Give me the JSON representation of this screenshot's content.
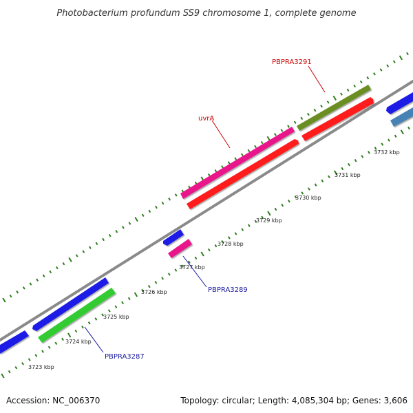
{
  "title": "Photobacterium profundum SS9 chromosome 1, complete genome",
  "footer": {
    "accession": "Accession: NC_006370",
    "summary": "Topology: circular; Length: 4,085,304 bp; Genes: 3,606"
  },
  "colors": {
    "backbone": "#8a8a8a",
    "tick": "#2e7d1e",
    "label_forward": "#cc0000",
    "label_reverse": "#1a1aa0",
    "leader_forward": "#cc0000",
    "leader_reverse": "#1a1aa0"
  },
  "tick_labels": [
    "3723 kbp",
    "3724 kbp",
    "3725 kbp",
    "3726 kbp",
    "3727 kbp",
    "3728 kbp",
    "3729 kbp",
    "3730 kbp",
    "3731 kbp",
    "3732 kbp"
  ],
  "gene_labels": [
    {
      "text": "PBPRA3291",
      "strand": "forward"
    },
    {
      "text": "uvrA",
      "strand": "forward"
    },
    {
      "text": "PBPRA3289",
      "strand": "reverse"
    },
    {
      "text": "PBPRA3287",
      "strand": "reverse"
    }
  ],
  "genes": [
    {
      "color": "#6b8e23"
    },
    {
      "color": "#ff1a1a"
    },
    {
      "color": "#e8178a"
    },
    {
      "color": "#ff1a1a"
    },
    {
      "color": "#1a1ae6"
    },
    {
      "color": "#e8178a"
    },
    {
      "color": "#1a1ae6"
    },
    {
      "color": "#33cc33"
    },
    {
      "color": "#1a1ae6"
    },
    {
      "color": "#1a1ae6"
    },
    {
      "color": "#4682b4"
    }
  ]
}
